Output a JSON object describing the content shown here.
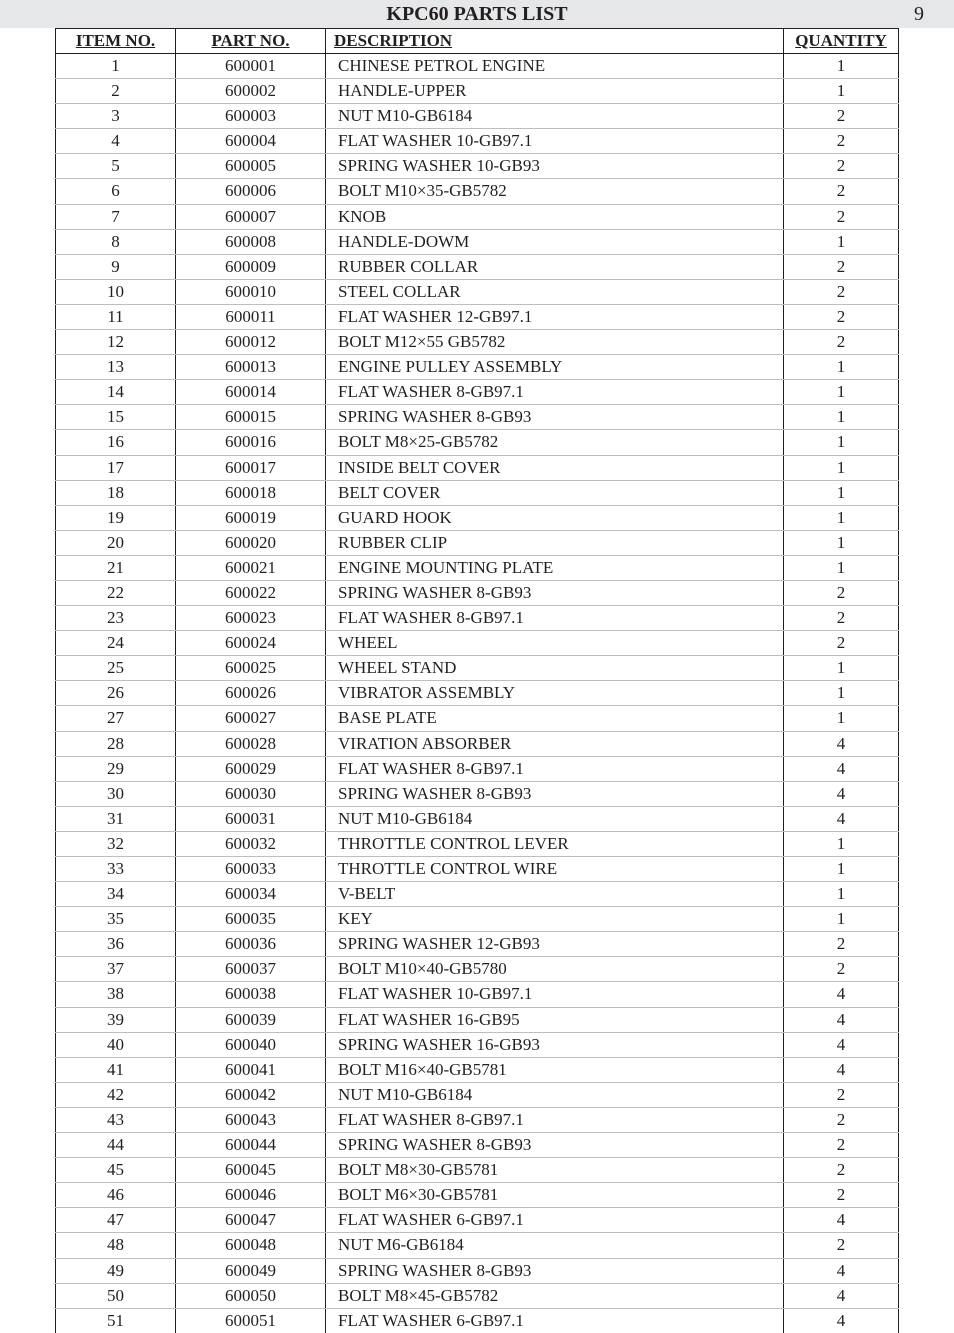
{
  "header": {
    "title": "KPC60 PARTS LIST",
    "page_number": "9"
  },
  "table": {
    "columns": {
      "item": "ITEM NO.",
      "part": "PART NO.",
      "desc": "DESCRIPTION",
      "qty": "QUANTITY"
    },
    "rows": [
      {
        "item": "1",
        "part": "600001",
        "desc": "CHINESE PETROL ENGINE",
        "qty": "1"
      },
      {
        "item": "2",
        "part": "600002",
        "desc": "HANDLE-UPPER",
        "qty": "1"
      },
      {
        "item": "3",
        "part": "600003",
        "desc": "NUT M10-GB6184",
        "qty": "2"
      },
      {
        "item": "4",
        "part": "600004",
        "desc": "FLAT WASHER 10-GB97.1",
        "qty": "2"
      },
      {
        "item": "5",
        "part": "600005",
        "desc": "SPRING WASHER 10-GB93",
        "qty": "2"
      },
      {
        "item": "6",
        "part": "600006",
        "desc": "BOLT M10×35-GB5782",
        "qty": "2"
      },
      {
        "item": "7",
        "part": "600007",
        "desc": "KNOB",
        "qty": "2"
      },
      {
        "item": "8",
        "part": "600008",
        "desc": "HANDLE-DOWM",
        "qty": "1"
      },
      {
        "item": "9",
        "part": "600009",
        "desc": "RUBBER COLLAR",
        "qty": "2"
      },
      {
        "item": "10",
        "part": "600010",
        "desc": "STEEL COLLAR",
        "qty": "2"
      },
      {
        "item": "11",
        "part": "600011",
        "desc": "FLAT WASHER 12-GB97.1",
        "qty": "2"
      },
      {
        "item": "12",
        "part": "600012",
        "desc": "BOLT M12×55 GB5782",
        "qty": "2"
      },
      {
        "item": "13",
        "part": "600013",
        "desc": "ENGINE PULLEY ASSEMBLY",
        "qty": "1"
      },
      {
        "item": "14",
        "part": "600014",
        "desc": "FLAT WASHER 8-GB97.1",
        "qty": "1"
      },
      {
        "item": "15",
        "part": "600015",
        "desc": "SPRING WASHER 8-GB93",
        "qty": "1"
      },
      {
        "item": "16",
        "part": "600016",
        "desc": "BOLT M8×25-GB5782",
        "qty": "1"
      },
      {
        "item": "17",
        "part": "600017",
        "desc": "INSIDE BELT COVER",
        "qty": "1"
      },
      {
        "item": "18",
        "part": "600018",
        "desc": "BELT COVER",
        "qty": "1"
      },
      {
        "item": "19",
        "part": "600019",
        "desc": "GUARD HOOK",
        "qty": "1"
      },
      {
        "item": "20",
        "part": "600020",
        "desc": "RUBBER CLIP",
        "qty": "1"
      },
      {
        "item": "21",
        "part": "600021",
        "desc": "ENGINE MOUNTING PLATE",
        "qty": "1"
      },
      {
        "item": "22",
        "part": "600022",
        "desc": "SPRING WASHER 8-GB93",
        "qty": "2"
      },
      {
        "item": "23",
        "part": "600023",
        "desc": "FLAT WASHER 8-GB97.1",
        "qty": "2"
      },
      {
        "item": "24",
        "part": "600024",
        "desc": "WHEEL",
        "qty": "2"
      },
      {
        "item": "25",
        "part": "600025",
        "desc": "WHEEL STAND",
        "qty": "1"
      },
      {
        "item": "26",
        "part": "600026",
        "desc": "VIBRATOR ASSEMBLY",
        "qty": "1"
      },
      {
        "item": "27",
        "part": "600027",
        "desc": "BASE PLATE",
        "qty": "1"
      },
      {
        "item": "28",
        "part": "600028",
        "desc": "VIRATION ABSORBER",
        "qty": "4"
      },
      {
        "item": "29",
        "part": "600029",
        "desc": "FLAT WASHER 8-GB97.1",
        "qty": "4"
      },
      {
        "item": "30",
        "part": "600030",
        "desc": "SPRING WASHER 8-GB93",
        "qty": "4"
      },
      {
        "item": "31",
        "part": "600031",
        "desc": "NUT M10-GB6184",
        "qty": "4"
      },
      {
        "item": "32",
        "part": "600032",
        "desc": "THROTTLE CONTROL LEVER",
        "qty": "1"
      },
      {
        "item": "33",
        "part": "600033",
        "desc": "THROTTLE CONTROL WIRE",
        "qty": "1"
      },
      {
        "item": "34",
        "part": "600034",
        "desc": "V-BELT",
        "qty": "1"
      },
      {
        "item": "35",
        "part": "600035",
        "desc": "KEY",
        "qty": "1"
      },
      {
        "item": "36",
        "part": "600036",
        "desc": "SPRING WASHER 12-GB93",
        "qty": "2"
      },
      {
        "item": "37",
        "part": "600037",
        "desc": "BOLT M10×40-GB5780",
        "qty": "2"
      },
      {
        "item": "38",
        "part": "600038",
        "desc": "FLAT WASHER 10-GB97.1",
        "qty": "4"
      },
      {
        "item": "39",
        "part": "600039",
        "desc": "FLAT WASHER 16-GB95",
        "qty": "4"
      },
      {
        "item": "40",
        "part": "600040",
        "desc": "SPRING WASHER 16-GB93",
        "qty": "4"
      },
      {
        "item": "41",
        "part": "600041",
        "desc": "BOLT M16×40-GB5781",
        "qty": "4"
      },
      {
        "item": "42",
        "part": "600042",
        "desc": "NUT M10-GB6184",
        "qty": "2"
      },
      {
        "item": "43",
        "part": "600043",
        "desc": "FLAT WASHER 8-GB97.1",
        "qty": "2"
      },
      {
        "item": "44",
        "part": "600044",
        "desc": "SPRING WASHER 8-GB93",
        "qty": "2"
      },
      {
        "item": "45",
        "part": "600045",
        "desc": "BOLT M8×30-GB5781",
        "qty": "2"
      },
      {
        "item": "46",
        "part": "600046",
        "desc": "BOLT M6×30-GB5781",
        "qty": "2"
      },
      {
        "item": "47",
        "part": "600047",
        "desc": "FLAT WASHER 6-GB97.1",
        "qty": "4"
      },
      {
        "item": "48",
        "part": "600048",
        "desc": "NUT M6-GB6184",
        "qty": "2"
      },
      {
        "item": "49",
        "part": "600049",
        "desc": "SPRING WASHER 8-GB93",
        "qty": "4"
      },
      {
        "item": "50",
        "part": "600050",
        "desc": "BOLT M8×45-GB5782",
        "qty": "4"
      },
      {
        "item": "51",
        "part": "600051",
        "desc": "FLAT WASHER 6-GB97.1",
        "qty": "4"
      }
    ]
  }
}
